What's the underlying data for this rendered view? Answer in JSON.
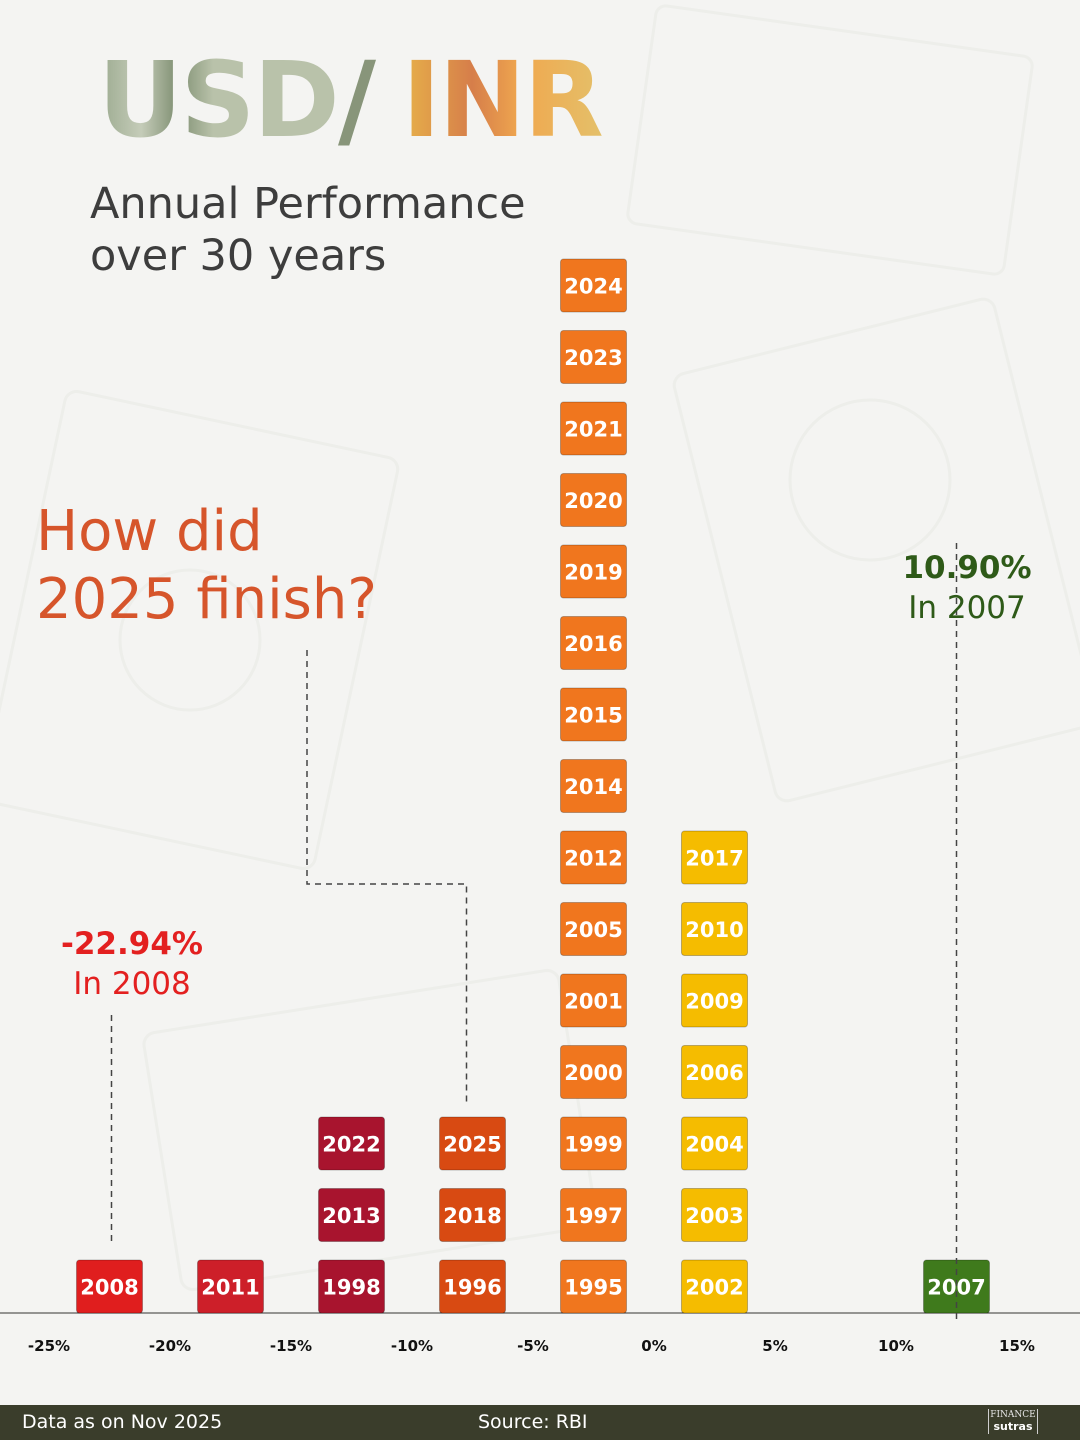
{
  "title": {
    "left": "USD",
    "slash": "/",
    "right": "INR"
  },
  "subtitle": [
    "Annual Performance",
    "over 30 years"
  ],
  "question": [
    "How did",
    "2025 finish?"
  ],
  "colors": {
    "extreme_negative": "#e01e1e",
    "deep_negative": "#cd1f29",
    "large_negative": "#a8142e",
    "medium_negative": "#d84a12",
    "small_negative": "#f0761e",
    "small_positive": "#f5bc00",
    "large_positive": "#3f7a1c"
  },
  "callouts": {
    "best": {
      "pct": "10.90%",
      "year_text": "In 2007"
    },
    "worst": {
      "pct": "-22.94%",
      "year_text": "In 2008"
    }
  },
  "chart_data": {
    "type": "histogram",
    "title": "USD/INR Annual Performance over 30 years",
    "x_ticks": [
      "-25%",
      "-20%",
      "-15%",
      "-10%",
      "-5%",
      "0%",
      "5%",
      "10%",
      "15%"
    ],
    "bins": [
      {
        "range": [
          -25,
          -20
        ],
        "color_key": "extreme_negative",
        "years": [
          "2008"
        ]
      },
      {
        "range": [
          -20,
          -15
        ],
        "color_key": "deep_negative",
        "years": [
          "2011"
        ]
      },
      {
        "range": [
          -15,
          -10
        ],
        "color_key": "large_negative",
        "years": [
          "1998",
          "2013",
          "2022"
        ]
      },
      {
        "range": [
          -10,
          -5
        ],
        "color_key": "medium_negative",
        "years": [
          "1996",
          "2018",
          "2025"
        ]
      },
      {
        "range": [
          -5,
          0
        ],
        "color_key": "small_negative",
        "years": [
          "1995",
          "1997",
          "1999",
          "2000",
          "2001",
          "2005",
          "2012",
          "2014",
          "2015",
          "2016",
          "2019",
          "2020",
          "2021",
          "2023",
          "2024"
        ]
      },
      {
        "range": [
          0,
          5
        ],
        "color_key": "small_positive",
        "years": [
          "2002",
          "2003",
          "2004",
          "2006",
          "2009",
          "2010",
          "2017"
        ]
      },
      {
        "range": [
          10,
          15
        ],
        "color_key": "large_positive",
        "years": [
          "2007"
        ]
      }
    ],
    "highlights": [
      {
        "year": "2007",
        "value": 10.9
      },
      {
        "year": "2008",
        "value": -22.94
      },
      {
        "year": "2025",
        "bin_range": [
          -10,
          -5
        ]
      }
    ]
  },
  "footer": {
    "data_note": "Data as on Nov 2025",
    "source": "Source: RBI",
    "logo_line1": "FINANCE",
    "logo_line2": "sutras"
  }
}
